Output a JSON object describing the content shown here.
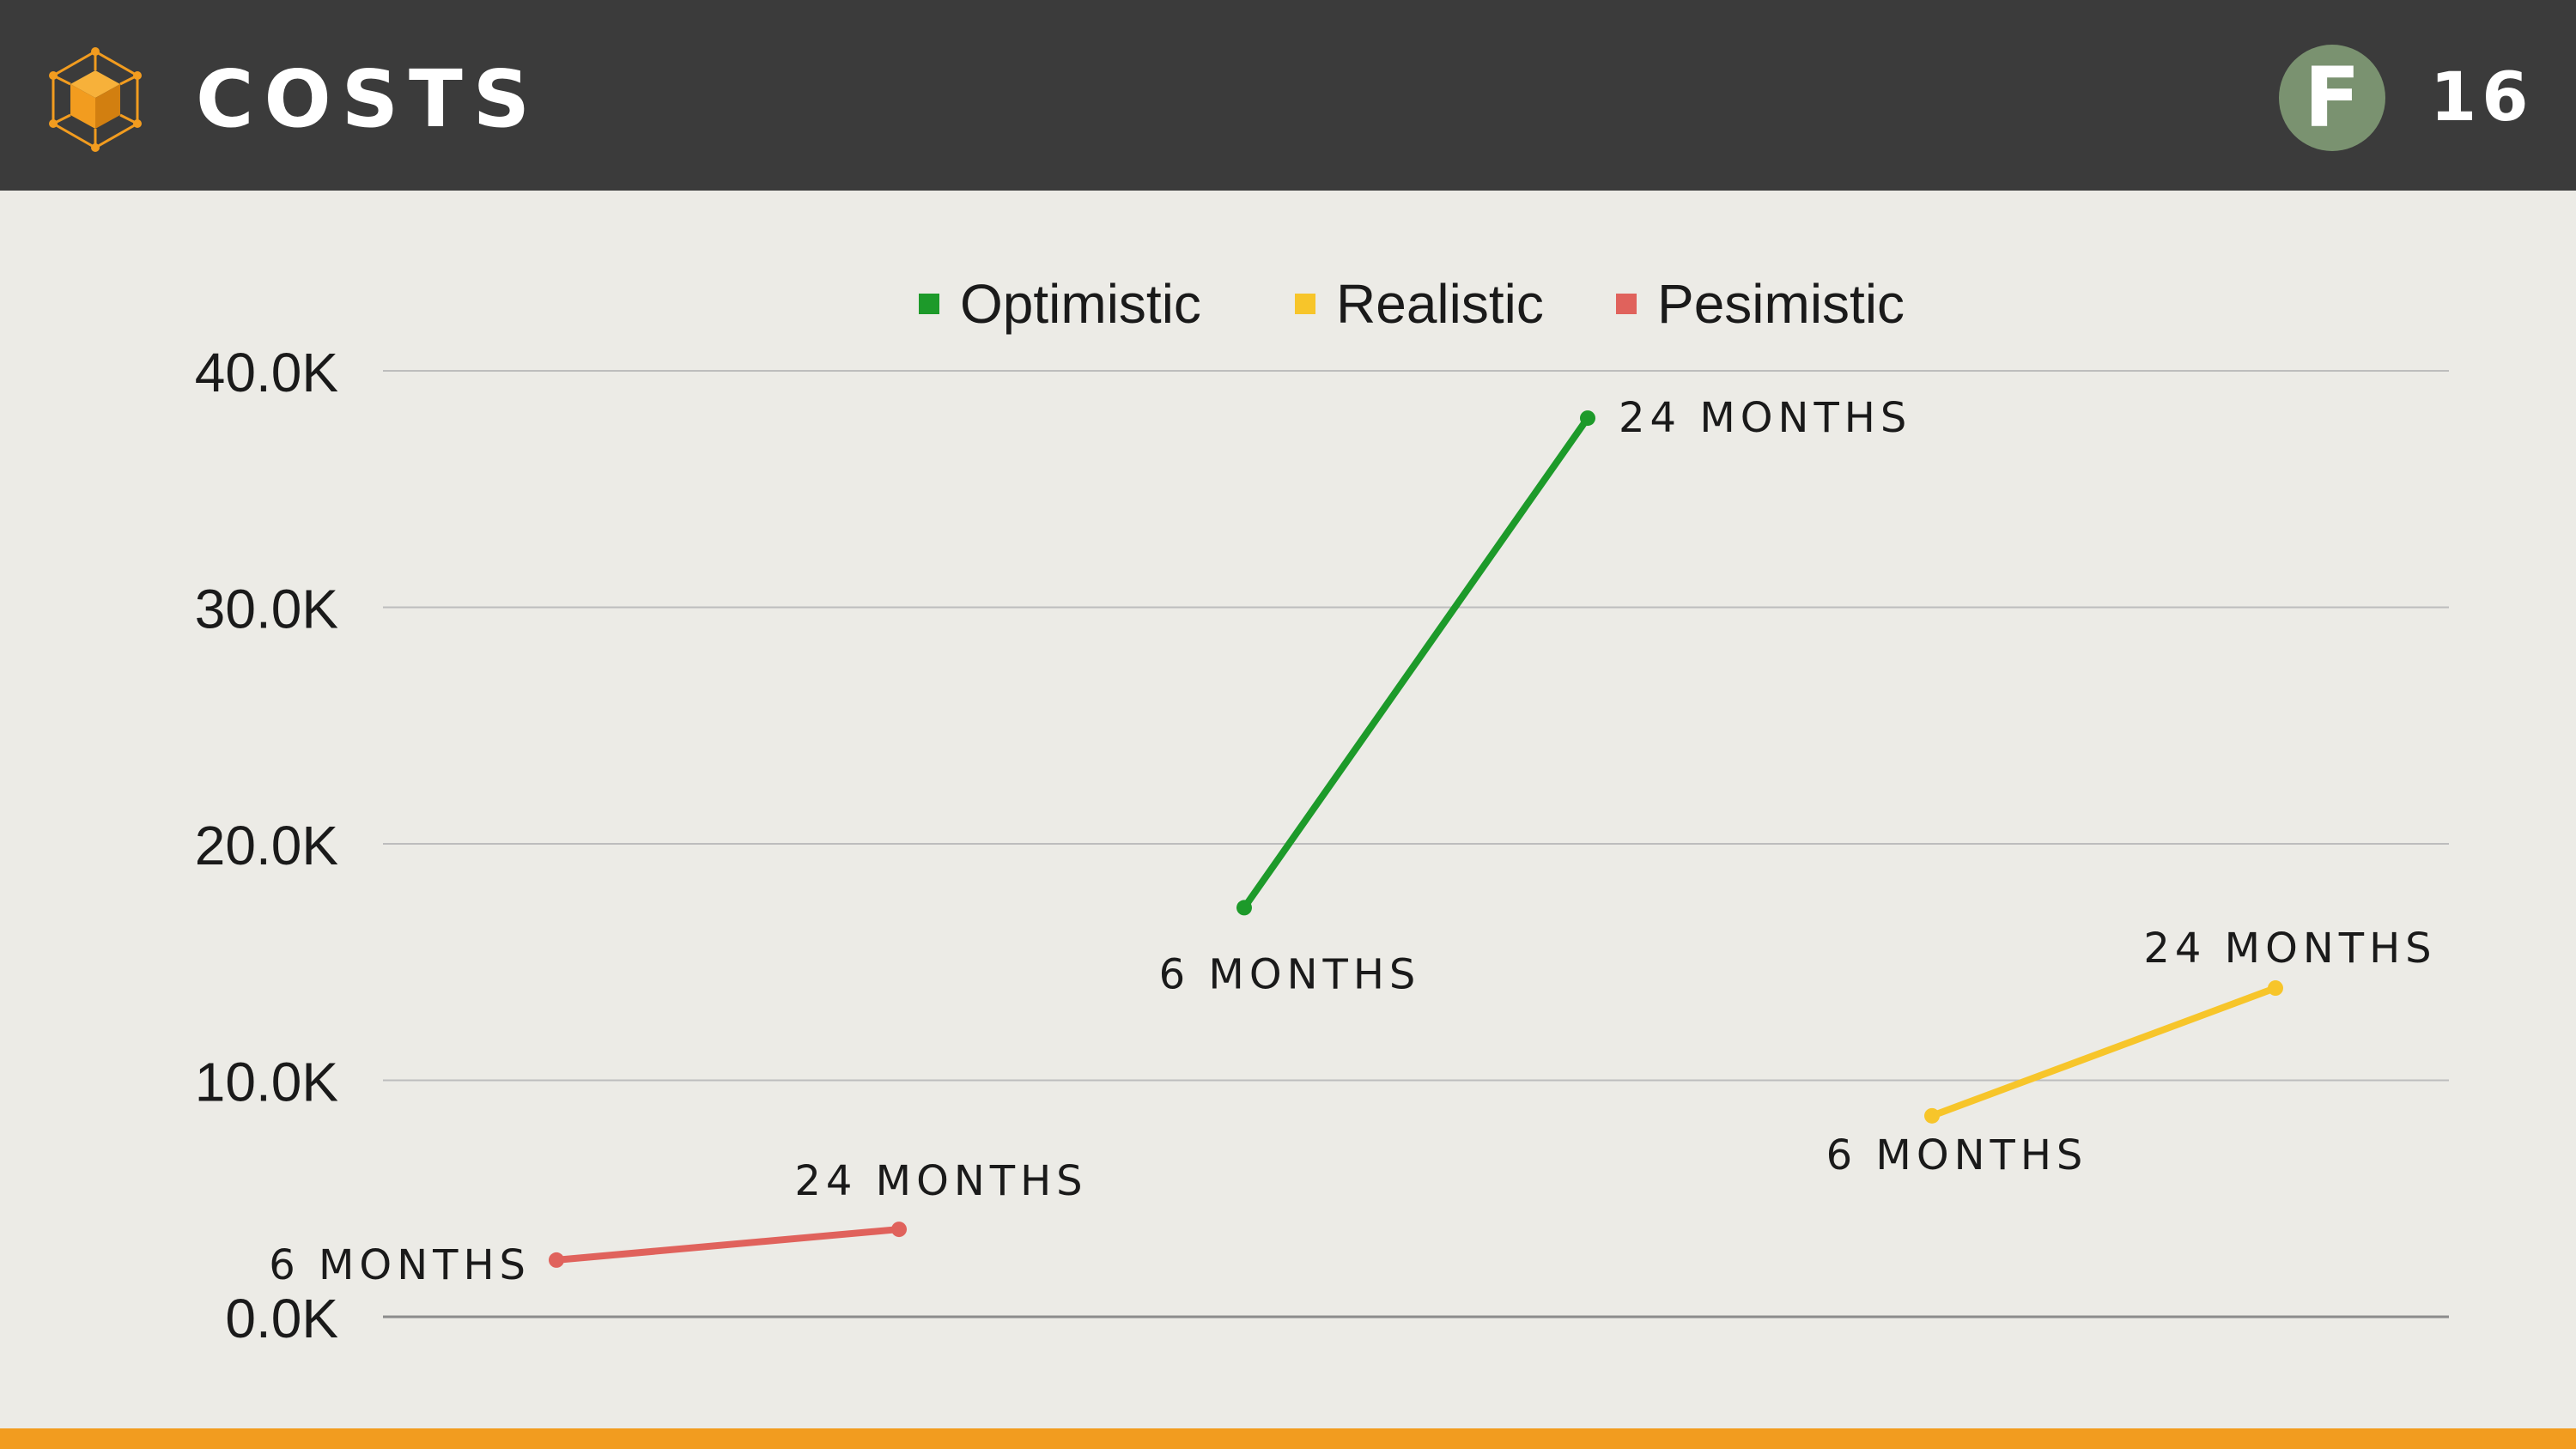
{
  "header": {
    "title": "COSTS",
    "badge_letter": "F",
    "page_number": "16",
    "logo_icon": "cube-network-icon",
    "background_color": "#3b3b3b",
    "accent_color": "#f29c1f",
    "badge_color": "#7a9270"
  },
  "chart_data": {
    "type": "line",
    "title": "",
    "xlabel": "",
    "ylabel": "",
    "ylim": [
      0,
      40000
    ],
    "yticks": [
      0,
      10000,
      20000,
      30000,
      40000
    ],
    "ytick_labels": [
      "0.0K",
      "10.0K",
      "20.0K",
      "30.0K",
      "40.0K"
    ],
    "grid": true,
    "legend_position": "top-center",
    "series": [
      {
        "name": "Optimistic",
        "color": "#1d9a2a",
        "points": [
          {
            "label": "6 MONTHS",
            "value": 17300
          },
          {
            "label": "24 MONTHS",
            "value": 38000
          }
        ]
      },
      {
        "name": "Realistic",
        "color": "#f7c52a",
        "points": [
          {
            "label": "6 MONTHS",
            "value": 8500
          },
          {
            "label": "24 MONTHS",
            "value": 13900
          }
        ]
      },
      {
        "name": "Pesimistic",
        "color": "#e0625c",
        "points": [
          {
            "label": "6 MONTHS",
            "value": 2400
          },
          {
            "label": "24 MONTHS",
            "value": 3700
          }
        ]
      }
    ]
  }
}
